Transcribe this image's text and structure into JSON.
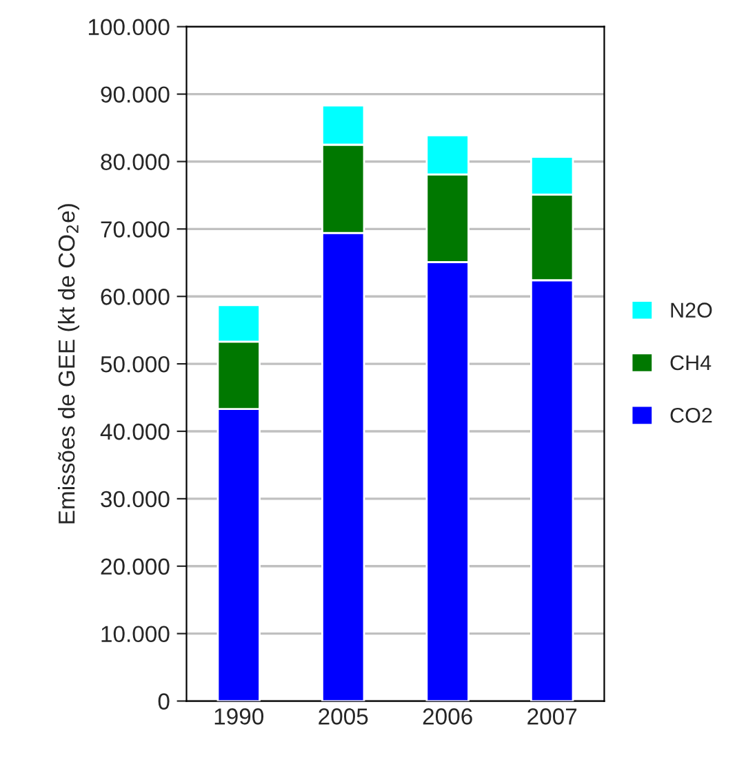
{
  "chart_data": {
    "type": "bar",
    "stacked": true,
    "ylabel": "Emissões de GEE (kt de CO$_{2}$e)",
    "categories": [
      "1990",
      "2005",
      "2006",
      "2007"
    ],
    "series": [
      {
        "name": "CO2",
        "color": "#0000ff",
        "values": [
          43300,
          69400,
          65100,
          62400
        ]
      },
      {
        "name": "CH4",
        "color": "#007800",
        "values": [
          10000,
          13100,
          13000,
          12700
        ]
      },
      {
        "name": "N2O",
        "color": "#00ffff",
        "values": [
          5400,
          5800,
          5800,
          5600
        ]
      }
    ],
    "ylim": [
      0,
      100000
    ],
    "yticks": [
      0,
      {
        "value": 10000,
        "label": "10.000"
      },
      {
        "value": 20000,
        "label": "20.000"
      },
      {
        "value": 30000,
        "label": "30.000"
      },
      {
        "value": 40000,
        "label": "40.000"
      },
      {
        "value": 50000,
        "label": "50.000"
      },
      {
        "value": 60000,
        "label": "60.000"
      },
      {
        "value": 70000,
        "label": "70.000"
      },
      {
        "value": 80000,
        "label": "80.000"
      },
      {
        "value": 90000,
        "label": "90.000"
      },
      {
        "value": 100000,
        "label": "100.000"
      }
    ],
    "grid": "y",
    "legend": "right"
  }
}
